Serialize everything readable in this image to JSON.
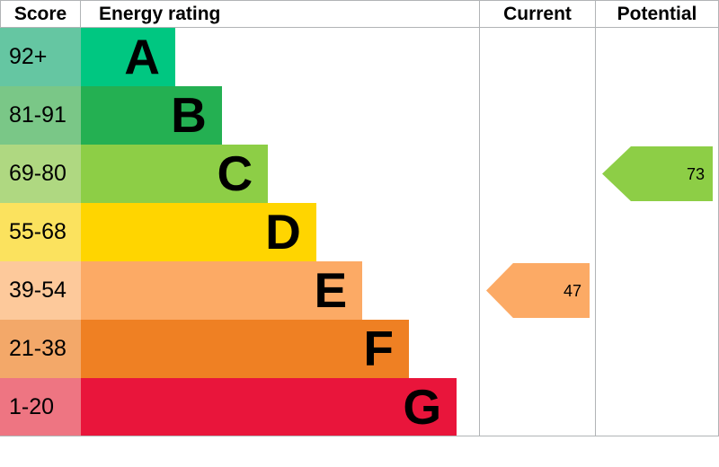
{
  "chart_data": {
    "type": "bar",
    "subtype": "epc-energy-rating",
    "title": "Energy rating",
    "columns": [
      "Score",
      "Energy rating",
      "Current",
      "Potential"
    ],
    "grid": "table borders on header, current and potential columns",
    "border_color": "#b1b4b6",
    "bands": [
      {
        "letter": "A",
        "score_range": "92+",
        "color": "#00c781",
        "score_color": "#65c6a2",
        "bar_width_pct": 23.7
      },
      {
        "letter": "B",
        "score_range": "81-91",
        "color": "#24b052",
        "score_color": "#7ac787",
        "bar_width_pct": 35.4
      },
      {
        "letter": "C",
        "score_range": "69-80",
        "color": "#8dce46",
        "score_color": "#afd881",
        "bar_width_pct": 47.0
      },
      {
        "letter": "D",
        "score_range": "55-68",
        "color": "#ffd500",
        "score_color": "#fbe25e",
        "bar_width_pct": 59.1
      },
      {
        "letter": "E",
        "score_range": "39-54",
        "color": "#fcaa65",
        "score_color": "#fdc99b",
        "bar_width_pct": 70.7
      },
      {
        "letter": "F",
        "score_range": "21-38",
        "color": "#ef8023",
        "score_color": "#f3a869",
        "bar_width_pct": 82.4
      },
      {
        "letter": "G",
        "score_range": "1-20",
        "color": "#e9153b",
        "score_color": "#ee7582",
        "bar_width_pct": 94.4
      }
    ],
    "current": {
      "value": 47,
      "band": "E",
      "color": "#fcaa65"
    },
    "potential": {
      "value": 73,
      "band": "C",
      "color": "#8dce46"
    }
  }
}
